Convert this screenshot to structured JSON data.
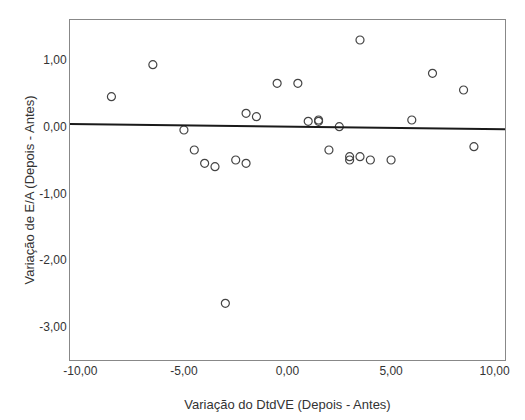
{
  "chart_data": {
    "type": "scatter",
    "xlabel": "Variação do DtdVE (Depois - Antes)",
    "ylabel": "Variação de E/A (Depois - Antes)",
    "series": [
      {
        "type": "scatter",
        "marker": "circle-open",
        "color": "#444444",
        "x": [
          -8.5,
          -6.5,
          -5.0,
          -4.5,
          -4.0,
          -3.5,
          -3.0,
          -2.5,
          -2.0,
          -1.5,
          -0.5,
          0.5,
          1.0,
          1.5,
          2.0,
          2.5,
          3.0,
          3.5,
          4.0,
          5.0,
          6.0,
          7.0,
          8.5,
          9.0,
          -2.0,
          1.5,
          3.0,
          3.5
        ],
        "values": [
          0.45,
          0.93,
          -0.05,
          -0.35,
          -0.55,
          -0.6,
          -2.65,
          -0.5,
          -0.55,
          0.15,
          0.65,
          0.65,
          0.08,
          0.08,
          -0.35,
          0.0,
          -0.5,
          1.3,
          -0.5,
          -0.5,
          0.1,
          0.8,
          0.55,
          -0.3,
          0.2,
          0.1,
          -0.45,
          -0.45
        ]
      },
      {
        "type": "line",
        "line_style": "solid",
        "color": "#1a1a1a",
        "x": [
          -10.5,
          10.5
        ],
        "values": [
          0.04,
          -0.04
        ]
      }
    ],
    "xlim": [
      -10.5,
      10.5
    ],
    "ylim": [
      -3.5,
      1.6
    ],
    "xticks": [
      {
        "value": -10.0,
        "label": "-10,00"
      },
      {
        "value": -5.0,
        "label": "-5,00"
      },
      {
        "value": 0.0,
        "label": "0,00"
      },
      {
        "value": 5.0,
        "label": "5,00"
      },
      {
        "value": 10.0,
        "label": "10,00"
      }
    ],
    "yticks": [
      {
        "value": -3.0,
        "label": "-3,00"
      },
      {
        "value": -2.0,
        "label": "-2,00"
      },
      {
        "value": -1.0,
        "label": "-1,00"
      },
      {
        "value": 0.0,
        "label": "0,00"
      },
      {
        "value": 1.0,
        "label": "1,00"
      }
    ],
    "grid": false
  }
}
